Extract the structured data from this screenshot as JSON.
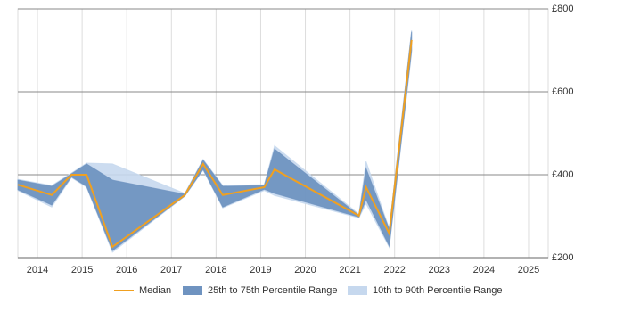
{
  "chart_data": {
    "type": "line",
    "x": [
      2013.56,
      2014.32,
      2014.76,
      2015.1,
      2015.68,
      2017.3,
      2017.71,
      2018.15,
      2019.08,
      2019.31,
      2021.2,
      2021.36,
      2021.88,
      2022.38
    ],
    "series": [
      {
        "name": "Median",
        "color": "#f0a020",
        "values": [
          376,
          351,
          400,
          400,
          226,
          351,
          426,
          351,
          370,
          413,
          301,
          370,
          258,
          725
        ]
      },
      {
        "name": "25th to 75th Percentile Range",
        "color": "#6f93c0",
        "low": [
          364,
          327,
          395,
          372,
          217,
          349,
          413,
          322,
          365,
          355,
          298,
          340,
          228,
          700
        ],
        "high": [
          387,
          372,
          402,
          426,
          387,
          353,
          435,
          372,
          374,
          462,
          302,
          415,
          268,
          745
        ]
      },
      {
        "name": "10th to 90th Percentile Range",
        "color": "#c6d8ee",
        "low": [
          362,
          322,
          393,
          370,
          213,
          348,
          411,
          320,
          362,
          350,
          296,
          330,
          225,
          695
        ],
        "high": [
          389,
          374,
          404,
          428,
          426,
          355,
          437,
          374,
          376,
          470,
          305,
          432,
          270,
          748
        ]
      }
    ],
    "xlim": [
      2013.56,
      2025.44
    ],
    "xticks": [
      2014,
      2015,
      2016,
      2017,
      2018,
      2019,
      2020,
      2021,
      2022,
      2023,
      2024,
      2025
    ],
    "ylim": [
      200,
      800
    ],
    "yticks": [
      {
        "value": 200,
        "label": "£200"
      },
      {
        "value": 400,
        "label": "£400"
      },
      {
        "value": 600,
        "label": "£600"
      },
      {
        "value": 800,
        "label": "£800"
      }
    ],
    "grid": true,
    "legend": "bottom"
  }
}
